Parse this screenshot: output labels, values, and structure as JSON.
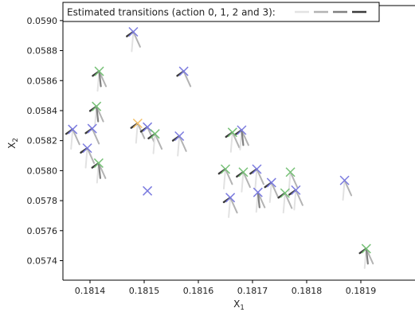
{
  "chart_data": {
    "type": "scatter",
    "title": "",
    "xlabel": "X",
    "xlabel_sub": "1",
    "ylabel": "X",
    "ylabel_sub": "2",
    "xlim": [
      0.18135,
      0.182
    ],
    "ylim": [
      0.05727,
      0.0591
    ],
    "xticks": [
      0.1814,
      0.1815,
      0.1816,
      0.1817,
      0.1818,
      0.1819
    ],
    "yticks": [
      0.0574,
      0.0576,
      0.0578,
      0.058,
      0.0582,
      0.0584,
      0.0586,
      0.0588,
      0.059
    ],
    "grid": false,
    "legend": {
      "label": "Estimated transitions (action 0, 1, 2 and 3):",
      "placement": "top-left",
      "action_colors": [
        "#e2e2e2",
        "#b3b3b3",
        "#808080",
        "#3c3c3c"
      ]
    },
    "transition_vectors": {
      "note_units": "arrow components in data units (dx, dy) per action",
      "action0": [
        -3e-06,
        -0.00013
      ],
      "action1": [
        1.25e-05,
        -0.0001
      ],
      "action2": [
        3e-06,
        -0.0001
      ],
      "action3": [
        -1.2e-05,
        -3e-05
      ]
    },
    "marker_colors": {
      "blue": "#7b7bdf",
      "green": "#77c177",
      "orange": "#f3bf66"
    },
    "points": [
      {
        "x": 0.18148,
        "y": 0.058925,
        "c": "blue"
      },
      {
        "x": 0.181417,
        "y": 0.058662,
        "c": "green"
      },
      {
        "x": 0.181573,
        "y": 0.058662,
        "c": "blue"
      },
      {
        "x": 0.181412,
        "y": 0.058428,
        "c": "green"
      },
      {
        "x": 0.181368,
        "y": 0.058275,
        "c": "blue"
      },
      {
        "x": 0.181404,
        "y": 0.05828,
        "c": "blue"
      },
      {
        "x": 0.181488,
        "y": 0.058315,
        "c": "orange"
      },
      {
        "x": 0.181506,
        "y": 0.05829,
        "c": "blue"
      },
      {
        "x": 0.18152,
        "y": 0.058245,
        "c": "green"
      },
      {
        "x": 0.181565,
        "y": 0.05823,
        "c": "blue"
      },
      {
        "x": 0.181395,
        "y": 0.05815,
        "c": "blue"
      },
      {
        "x": 0.181416,
        "y": 0.05805,
        "c": "green"
      },
      {
        "x": 0.181506,
        "y": 0.057865,
        "c": "blue"
      },
      {
        "x": 0.181663,
        "y": 0.058255,
        "c": "green"
      },
      {
        "x": 0.18168,
        "y": 0.05827,
        "c": "blue"
      },
      {
        "x": 0.18165,
        "y": 0.05801,
        "c": "green"
      },
      {
        "x": 0.181683,
        "y": 0.05799,
        "c": "green"
      },
      {
        "x": 0.181708,
        "y": 0.05801,
        "c": "blue"
      },
      {
        "x": 0.181735,
        "y": 0.05792,
        "c": "blue"
      },
      {
        "x": 0.18171,
        "y": 0.057855,
        "c": "blue"
      },
      {
        "x": 0.181659,
        "y": 0.05782,
        "c": "blue"
      },
      {
        "x": 0.18177,
        "y": 0.05799,
        "c": "green"
      },
      {
        "x": 0.18176,
        "y": 0.05785,
        "c": "green"
      },
      {
        "x": 0.18178,
        "y": 0.05787,
        "c": "blue"
      },
      {
        "x": 0.18187,
        "y": 0.057935,
        "c": "blue"
      },
      {
        "x": 0.18191,
        "y": 0.05748,
        "c": "green"
      }
    ],
    "point_transitions": [
      {
        "x": 0.18148,
        "y": 0.058925,
        "actions": [
          0,
          1,
          3
        ]
      },
      {
        "x": 0.181417,
        "y": 0.058662,
        "actions": [
          0,
          1,
          2,
          3
        ]
      },
      {
        "x": 0.181573,
        "y": 0.058662,
        "actions": [
          1,
          3
        ]
      },
      {
        "x": 0.181412,
        "y": 0.058428,
        "actions": [
          0,
          1,
          2,
          3
        ]
      },
      {
        "x": 0.181368,
        "y": 0.058275,
        "actions": [
          0,
          1,
          3
        ]
      },
      {
        "x": 0.181404,
        "y": 0.05828,
        "actions": [
          1,
          3
        ]
      },
      {
        "x": 0.181488,
        "y": 0.058315,
        "actions": [
          0,
          1,
          3
        ]
      },
      {
        "x": 0.181506,
        "y": 0.05829,
        "actions": [
          1,
          3
        ]
      },
      {
        "x": 0.18152,
        "y": 0.058245,
        "actions": [
          0,
          1,
          3
        ]
      },
      {
        "x": 0.181565,
        "y": 0.05823,
        "actions": [
          0,
          1,
          3
        ]
      },
      {
        "x": 0.181395,
        "y": 0.05815,
        "actions": [
          0,
          1,
          3
        ]
      },
      {
        "x": 0.181416,
        "y": 0.05805,
        "actions": [
          0,
          1,
          2,
          3
        ]
      },
      {
        "x": 0.181663,
        "y": 0.058255,
        "actions": [
          0,
          1,
          3
        ]
      },
      {
        "x": 0.18168,
        "y": 0.05827,
        "actions": [
          0,
          1,
          2,
          3
        ]
      },
      {
        "x": 0.18165,
        "y": 0.05801,
        "actions": [
          0,
          1,
          3
        ]
      },
      {
        "x": 0.181683,
        "y": 0.05799,
        "actions": [
          0,
          1,
          3
        ]
      },
      {
        "x": 0.181708,
        "y": 0.05801,
        "actions": [
          0,
          1,
          3
        ]
      },
      {
        "x": 0.181735,
        "y": 0.05792,
        "actions": [
          0,
          1,
          3
        ]
      },
      {
        "x": 0.18171,
        "y": 0.057855,
        "actions": [
          0,
          1,
          2
        ]
      },
      {
        "x": 0.181659,
        "y": 0.05782,
        "actions": [
          0,
          1,
          3
        ]
      },
      {
        "x": 0.18177,
        "y": 0.05799,
        "actions": [
          0,
          1
        ]
      },
      {
        "x": 0.18176,
        "y": 0.05785,
        "actions": [
          0,
          1,
          3
        ]
      },
      {
        "x": 0.18178,
        "y": 0.05787,
        "actions": [
          0,
          1,
          3
        ]
      },
      {
        "x": 0.18187,
        "y": 0.057935,
        "actions": [
          0,
          1
        ]
      },
      {
        "x": 0.18191,
        "y": 0.05748,
        "actions": [
          0,
          1,
          2,
          3
        ]
      }
    ]
  }
}
